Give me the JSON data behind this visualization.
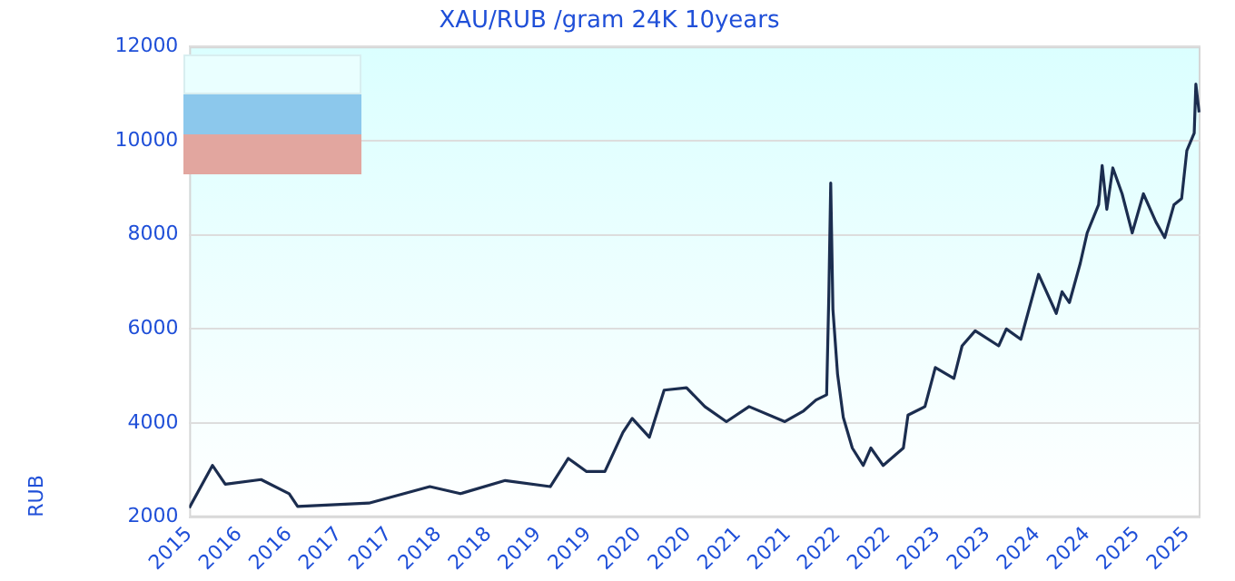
{
  "chart_data": {
    "type": "line",
    "title": "XAU/RUB /gram 24K 10years",
    "ylabel": "RUB",
    "x": [
      "2015-10-01",
      "2015-12-25",
      "2016-02-10",
      "2016-06-20",
      "2016-10-01",
      "2016-11-01",
      "2017-07-20",
      "2018-02-28",
      "2018-06-20",
      "2018-12-01",
      "2019-05-15",
      "2019-07-20",
      "2019-09-25",
      "2019-12-01",
      "2020-02-05",
      "2020-03-10",
      "2020-05-12",
      "2020-07-05",
      "2020-09-25",
      "2020-12-01",
      "2021-02-18",
      "2021-05-12",
      "2021-09-20",
      "2021-11-28",
      "2022-01-12",
      "2022-02-20",
      "2022-02-28",
      "2022-03-07",
      "2022-03-15",
      "2022-04-01",
      "2022-04-22",
      "2022-05-25",
      "2022-07-04",
      "2022-08-01",
      "2022-09-15",
      "2022-11-28",
      "2022-12-15",
      "2023-02-15",
      "2023-03-25",
      "2023-06-01",
      "2023-07-01",
      "2023-08-18",
      "2023-11-12",
      "2023-12-10",
      "2024-02-01",
      "2024-04-06",
      "2024-06-10",
      "2024-07-01",
      "2024-07-28",
      "2024-09-06",
      "2024-10-01",
      "2024-11-12",
      "2024-11-25",
      "2024-12-12",
      "2025-01-03",
      "2025-02-06",
      "2025-03-15",
      "2025-04-25",
      "2025-06-10",
      "2025-07-12",
      "2025-08-15",
      "2025-09-12",
      "2025-10-01",
      "2025-10-28",
      "2025-11-03",
      "2025-11-15"
    ],
    "series": [
      {
        "color": "#1b2d4f",
        "values": [
          2200,
          3100,
          2700,
          2800,
          2500,
          2230,
          2300,
          2650,
          2500,
          2780,
          2650,
          3250,
          2970,
          2970,
          3800,
          4100,
          3700,
          4700,
          4750,
          4350,
          4030,
          4350,
          4030,
          4260,
          4490,
          4600,
          6700,
          9100,
          6420,
          5040,
          4120,
          3470,
          3100,
          3470,
          3100,
          3470,
          4170,
          4350,
          5180,
          4950,
          5640,
          5960,
          5640,
          6000,
          5780,
          7160,
          6330,
          6790,
          6560,
          7400,
          8040,
          8640,
          9470,
          8540,
          9420,
          8870,
          8040,
          8870,
          8270,
          7940,
          8640,
          8770,
          9790,
          10160,
          11200,
          10600
        ]
      }
    ],
    "xlim": [
      "2015-10-01",
      "2025-11-20"
    ],
    "xticks": [
      {
        "value": "2015-10-01",
        "label": "2015"
      },
      {
        "value": "2016-04-01",
        "label": "2016"
      },
      {
        "value": "2016-10-01",
        "label": "2016"
      },
      {
        "value": "2017-04-01",
        "label": "2017"
      },
      {
        "value": "2017-10-01",
        "label": "2017"
      },
      {
        "value": "2018-04-01",
        "label": "2018"
      },
      {
        "value": "2018-10-01",
        "label": "2018"
      },
      {
        "value": "2019-04-01",
        "label": "2019"
      },
      {
        "value": "2019-10-01",
        "label": "2019"
      },
      {
        "value": "2020-04-01",
        "label": "2020"
      },
      {
        "value": "2020-10-01",
        "label": "2020"
      },
      {
        "value": "2021-04-01",
        "label": "2021"
      },
      {
        "value": "2021-10-01",
        "label": "2021"
      },
      {
        "value": "2022-04-01",
        "label": "2022"
      },
      {
        "value": "2022-10-01",
        "label": "2022"
      },
      {
        "value": "2023-04-01",
        "label": "2023"
      },
      {
        "value": "2023-10-01",
        "label": "2023"
      },
      {
        "value": "2024-04-01",
        "label": "2024"
      },
      {
        "value": "2024-10-01",
        "label": "2024"
      },
      {
        "value": "2025-04-01",
        "label": "2025"
      },
      {
        "value": "2025-10-01",
        "label": "2025"
      }
    ],
    "ylim": [
      2000,
      12000
    ],
    "yticks": [
      2000,
      4000,
      6000,
      8000,
      10000,
      12000
    ],
    "grid": "y",
    "marker": "none",
    "line_style": "solid"
  }
}
